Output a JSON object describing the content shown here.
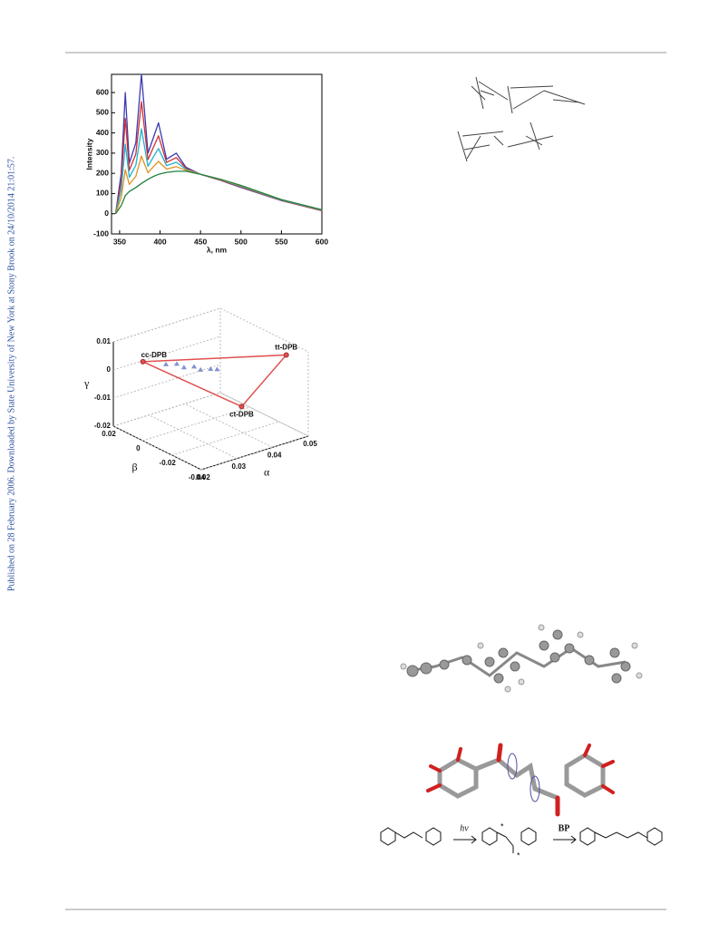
{
  "side_note": "Published on 28 February 2006. Downloaded by State University of New York at Stony Brook on 24/10/2014 21:01:57.",
  "charts": [
    {
      "type": "line",
      "ylabel": "Intensity",
      "xlabel": "λ, nm",
      "x": [
        345,
        352,
        357,
        362,
        370,
        377,
        385,
        392,
        398,
        408,
        420,
        432,
        450,
        475,
        500,
        550,
        600
      ],
      "xlim": [
        340,
        600
      ],
      "xticks": [
        350,
        400,
        450,
        500,
        550,
        600
      ],
      "ylim": [
        -100,
        690
      ],
      "yticks": [
        -100,
        0,
        100,
        200,
        300,
        400,
        500,
        600
      ],
      "series": [
        {
          "color": "#3a3ab0",
          "values": [
            0,
            200,
            600,
            250,
            350,
            690,
            300,
            380,
            450,
            270,
            300,
            230,
            195,
            165,
            130,
            65,
            15
          ]
        },
        {
          "color": "#d03030",
          "values": [
            0,
            160,
            472,
            215,
            295,
            555,
            268,
            331,
            386,
            254,
            278,
            225,
            195,
            166,
            132,
            66,
            16
          ]
        },
        {
          "color": "#20b0d0",
          "values": [
            0,
            120,
            345,
            180,
            240,
            420,
            235,
            283,
            323,
            238,
            255,
            220,
            195,
            168,
            135,
            68,
            18
          ]
        },
        {
          "color": "#e09020",
          "values": [
            0,
            80,
            218,
            145,
            185,
            285,
            203,
            234,
            259,
            221,
            233,
            215,
            195,
            169,
            138,
            69,
            19
          ]
        },
        {
          "color": "#208040",
          "values": [
            0,
            40,
            90,
            110,
            130,
            150,
            170,
            185,
            195,
            205,
            210,
            210,
            195,
            170,
            140,
            70,
            20
          ]
        }
      ]
    },
    {
      "type": "scatter3d",
      "xlabel": "α",
      "ylabel": "β",
      "zlabel": "γ",
      "xlim": [
        0.02,
        0.05
      ],
      "xticks": [
        0.02,
        0.03,
        0.04,
        0.05
      ],
      "ylim": [
        -0.04,
        0.02
      ],
      "yticks": [
        0.02,
        0,
        -0.02,
        -0.04
      ],
      "zlim": [
        -0.02,
        0.01
      ],
      "zticks": [
        0.01,
        0,
        -0.01,
        -0.02
      ],
      "vertices": {
        "names": [
          "cc-DPB",
          "tt-DPB",
          "ct-DPB"
        ],
        "color": "#e05050",
        "alpha": [
          0.025,
          0.05,
          0.042
        ],
        "beta": [
          0.012,
          -0.025,
          -0.014
        ],
        "gamma": [
          0.003,
          0.005,
          -0.013
        ]
      },
      "points": {
        "color": "#8090d0",
        "alpha": [
          0.029,
          0.031,
          0.032,
          0.034,
          0.035,
          0.037,
          0.038
        ],
        "beta": [
          0.006,
          0.0035,
          0.001,
          -0.001,
          -0.003,
          -0.005,
          -0.007
        ],
        "gamma": [
          0.002,
          0.002,
          0.001,
          0.001,
          0,
          0,
          0
        ]
      }
    }
  ],
  "scheme": {
    "step1": "hν",
    "step2": "BP",
    "radical": "*"
  }
}
